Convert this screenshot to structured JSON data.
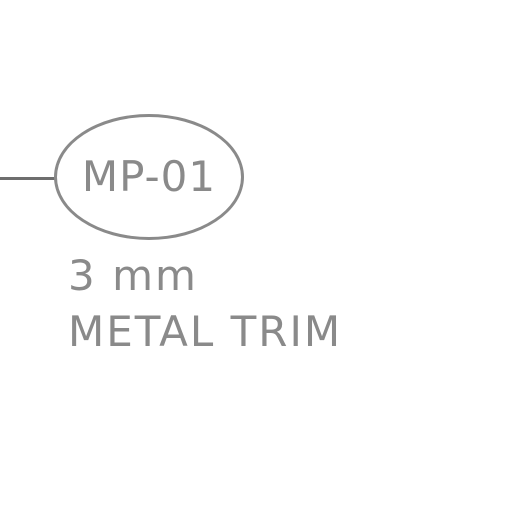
{
  "tag": {
    "label": "MP-01"
  },
  "note": {
    "line1": "3 mm",
    "line2": "METAL TRIM"
  },
  "colors": {
    "line": "#6e6e6e",
    "text": "#8a8a8a",
    "background": "#ffffff"
  }
}
